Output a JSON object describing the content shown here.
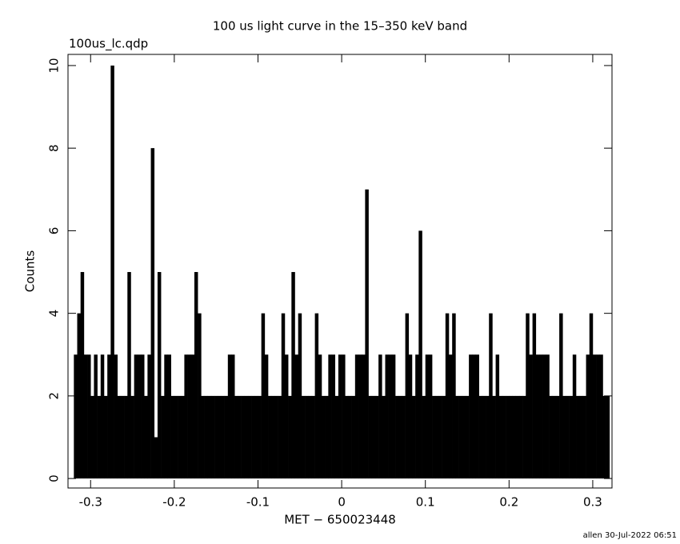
{
  "chart_data": {
    "type": "bar",
    "title": "100 us light curve in the 15–350 keV band",
    "subtitle": "100us_lc.qdp",
    "xlabel": "MET − 650023448",
    "ylabel": "Counts",
    "footer": "allen 30-Jul-2022 06:51",
    "color": "#000000",
    "xlim": [
      -0.327,
      0.323
    ],
    "ylim": [
      -0.23,
      10.27
    ],
    "xticks": [
      -0.3,
      -0.2,
      -0.1,
      0,
      0.1,
      0.2,
      0.3
    ],
    "yticks": [
      0,
      2,
      4,
      6,
      8,
      10
    ],
    "x": [
      -0.318,
      -0.314,
      -0.31,
      -0.306,
      -0.302,
      -0.298,
      -0.294,
      -0.29,
      -0.286,
      -0.282,
      -0.278,
      -0.274,
      -0.27,
      -0.266,
      -0.262,
      -0.258,
      -0.254,
      -0.25,
      -0.246,
      -0.242,
      -0.238,
      -0.234,
      -0.23,
      -0.226,
      -0.222,
      -0.218,
      -0.214,
      -0.21,
      -0.206,
      -0.202,
      -0.198,
      -0.194,
      -0.19,
      -0.186,
      -0.182,
      -0.178,
      -0.174,
      -0.17,
      -0.166,
      -0.162,
      -0.158,
      -0.154,
      -0.15,
      -0.146,
      -0.142,
      -0.138,
      -0.134,
      -0.13,
      -0.126,
      -0.122,
      -0.118,
      -0.114,
      -0.11,
      -0.106,
      -0.102,
      -0.098,
      -0.094,
      -0.09,
      -0.086,
      -0.082,
      -0.078,
      -0.074,
      -0.07,
      -0.066,
      -0.062,
      -0.058,
      -0.054,
      -0.05,
      -0.046,
      -0.042,
      -0.038,
      -0.034,
      -0.03,
      -0.026,
      -0.022,
      -0.018,
      -0.014,
      -0.01,
      -0.006,
      -0.002,
      0.002,
      0.006,
      0.01,
      0.014,
      0.018,
      0.022,
      0.026,
      0.03,
      0.034,
      0.038,
      0.042,
      0.046,
      0.05,
      0.054,
      0.058,
      0.062,
      0.066,
      0.07,
      0.074,
      0.078,
      0.082,
      0.086,
      0.09,
      0.094,
      0.098,
      0.102,
      0.106,
      0.11,
      0.114,
      0.118,
      0.122,
      0.126,
      0.13,
      0.134,
      0.138,
      0.142,
      0.146,
      0.15,
      0.154,
      0.158,
      0.162,
      0.166,
      0.17,
      0.174,
      0.178,
      0.182,
      0.186,
      0.19,
      0.194,
      0.198,
      0.202,
      0.206,
      0.21,
      0.214,
      0.218,
      0.222,
      0.226,
      0.23,
      0.234,
      0.238,
      0.242,
      0.246,
      0.25,
      0.254,
      0.258,
      0.262,
      0.266,
      0.27,
      0.274,
      0.278,
      0.282,
      0.286,
      0.29,
      0.294,
      0.298,
      0.302,
      0.306,
      0.31,
      0.314,
      0.318
    ],
    "values": [
      3,
      4,
      5,
      3,
      3,
      2,
      3,
      2,
      3,
      2,
      3,
      10,
      3,
      2,
      2,
      2,
      5,
      2,
      3,
      3,
      3,
      2,
      3,
      8,
      1,
      5,
      2,
      3,
      3,
      2,
      2,
      2,
      2,
      3,
      3,
      3,
      5,
      4,
      2,
      2,
      2,
      2,
      2,
      2,
      2,
      2,
      3,
      3,
      2,
      2,
      2,
      2,
      2,
      2,
      2,
      2,
      4,
      3,
      2,
      2,
      2,
      2,
      4,
      3,
      2,
      5,
      3,
      4,
      2,
      2,
      2,
      2,
      4,
      3,
      2,
      2,
      3,
      3,
      2,
      3,
      3,
      2,
      2,
      2,
      3,
      3,
      3,
      7,
      2,
      2,
      2,
      3,
      2,
      3,
      3,
      3,
      2,
      2,
      2,
      4,
      3,
      2,
      3,
      6,
      2,
      3,
      3,
      2,
      2,
      2,
      2,
      4,
      3,
      4,
      2,
      2,
      2,
      2,
      3,
      3,
      3,
      2,
      2,
      2,
      4,
      2,
      3,
      2,
      2,
      2,
      2,
      2,
      2,
      2,
      2,
      4,
      3,
      4,
      3,
      3,
      3,
      3,
      2,
      2,
      2,
      4,
      2,
      2,
      2,
      3,
      2,
      2,
      2,
      3,
      4,
      3,
      3,
      3,
      2,
      2
    ]
  }
}
